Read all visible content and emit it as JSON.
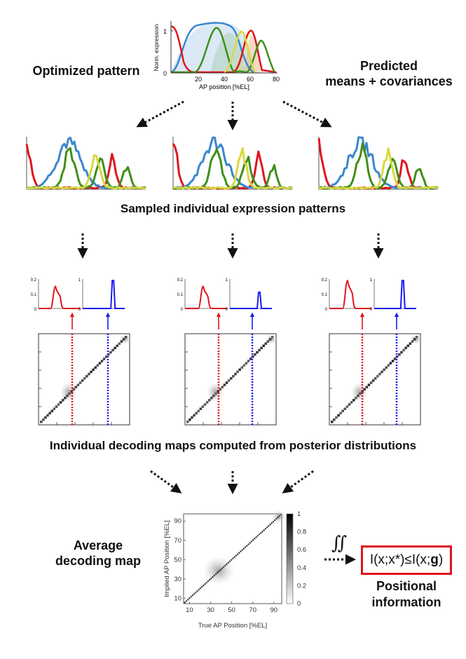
{
  "texts": {
    "optimized_pattern": "Optimized pattern",
    "predicted_line1": "Predicted",
    "predicted_line2": "means + covariances",
    "sampled_caption": "Sampled individual expression patterns",
    "decoding_caption": "Individual decoding maps computed from posterior distributions",
    "average_line1": "Average",
    "average_line2": "decoding map",
    "positional_line1": "Positional",
    "positional_line2": "information",
    "integral_symbol": "∬",
    "formula_prefix": "I(x;x*)≤I(x;",
    "formula_bold": "g",
    "formula_suffix": ")"
  },
  "top_plot": {
    "ylabel": "Norm. expression",
    "xlabel": "AP position [%EL]",
    "xticks": [
      "20",
      "40",
      "60",
      "80"
    ],
    "yticks": [
      "0",
      "1"
    ]
  },
  "posterior_plots": {
    "red_yticks": [
      "0",
      "0.1",
      "0.2"
    ],
    "blue_yticks": [
      "0",
      "1"
    ]
  },
  "average_map": {
    "ylabel": "Implied AP Position [%EL]",
    "xlabel": "True AP Position [%EL]",
    "xticks": [
      "10",
      "30",
      "50",
      "70",
      "90"
    ],
    "yticks": [
      "10",
      "30",
      "50",
      "70",
      "90"
    ],
    "colorbar_ticks": [
      "0",
      "0.2",
      "0.4",
      "0.6",
      "0.8",
      "1"
    ]
  },
  "colors": {
    "red": "#e0141e",
    "blue": "#3a86cc",
    "green": "#3f8f1a",
    "yellow": "#d8d840",
    "decode_blue": "#1a1aee",
    "arrow": "#111111"
  }
}
